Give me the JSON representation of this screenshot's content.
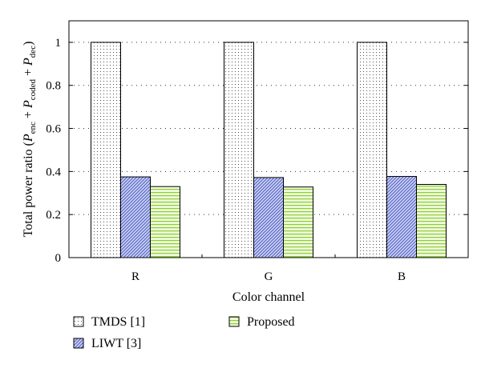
{
  "chart_data": {
    "type": "bar",
    "categories": [
      "R",
      "G",
      "B"
    ],
    "series": [
      {
        "name": "TMDS [1]",
        "values": [
          1.0,
          1.0,
          1.0
        ],
        "fill": "dots",
        "color": "#ffffff"
      },
      {
        "name": "LIWT [3]",
        "values": [
          0.375,
          0.372,
          0.377
        ],
        "fill": "diagonal",
        "color": "#9fa9e0"
      },
      {
        "name": "Proposed",
        "values": [
          0.33,
          0.328,
          0.34
        ],
        "fill": "horizontal",
        "color": "#b3ea6a"
      }
    ],
    "xlabel": "Color channel",
    "ylabel": {
      "prefix": "Total power ratio (",
      "terms": [
        {
          "symbol": "P",
          "sub": "enc"
        },
        {
          "symbol": "P",
          "sub": "coded"
        },
        {
          "symbol": "P",
          "sub": "dec"
        }
      ],
      "joiner": " + ",
      "suffix": ")"
    },
    "ylim": [
      0,
      1.1
    ],
    "yticks": [
      0,
      0.2,
      0.4,
      0.6,
      0.8,
      1
    ],
    "ytick_labels": [
      "0",
      "0.2",
      "0.4",
      "0.6",
      "0.8",
      "1"
    ],
    "grid": "horizontal-dotted",
    "legend_position": "bottom"
  }
}
